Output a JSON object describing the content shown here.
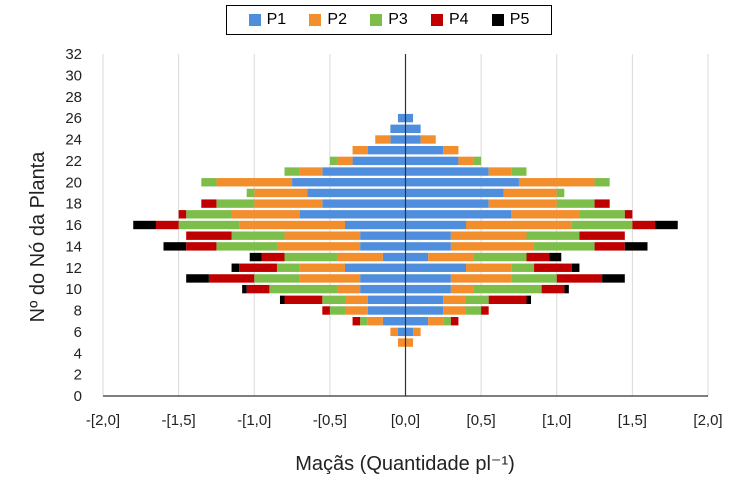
{
  "chart_data": {
    "type": "bar",
    "orientation": "horizontal",
    "stacked": "diverging",
    "xlabel": "Maçãs (Quantidade pl⁻¹)",
    "ylabel": "Nº do Nó da Planta",
    "xlim": [
      -2.0,
      2.0
    ],
    "ylim": [
      0,
      32
    ],
    "xtick_values": [
      -2.0,
      -1.5,
      -1.0,
      -0.5,
      0.0,
      0.5,
      1.0,
      1.5,
      2.0
    ],
    "xtick_labels": [
      "-[2,0]",
      "-[1,5]",
      "-[1,0]",
      "-[0,5]",
      "[0,0]",
      "[0,5]",
      "[1,0]",
      "[1,5]",
      "[2,0]"
    ],
    "ytick_values": [
      0,
      2,
      4,
      6,
      8,
      10,
      12,
      14,
      16,
      18,
      20,
      22,
      24,
      26,
      28,
      30,
      32
    ],
    "ytick_labels": [
      "0",
      "2",
      "4",
      "6",
      "8",
      "10",
      "12",
      "14",
      "16",
      "18",
      "20",
      "22",
      "24",
      "26",
      "28",
      "30",
      "32"
    ],
    "grid": "vertical",
    "legend_position": "top",
    "series": [
      {
        "name": "P1",
        "color": "#4F8EDD"
      },
      {
        "name": "P2",
        "color": "#F28E2B"
      },
      {
        "name": "P3",
        "color": "#7DBE4A"
      },
      {
        "name": "P4",
        "color": "#C00000"
      },
      {
        "name": "P5",
        "color": "#000000"
      }
    ],
    "nodes": [
      {
        "y": 5,
        "values": [
          0,
          0.05,
          0,
          0,
          0
        ]
      },
      {
        "y": 6,
        "values": [
          0.05,
          0.05,
          0,
          0,
          0
        ]
      },
      {
        "y": 7,
        "values": [
          0.15,
          0.1,
          0.05,
          0.05,
          0
        ]
      },
      {
        "y": 8,
        "values": [
          0.25,
          0.15,
          0.1,
          0.05,
          0
        ]
      },
      {
        "y": 9,
        "values": [
          0.25,
          0.15,
          0.15,
          0.25,
          0.03
        ]
      },
      {
        "y": 10,
        "values": [
          0.3,
          0.15,
          0.45,
          0.15,
          0.03
        ]
      },
      {
        "y": 11,
        "values": [
          0.3,
          0.4,
          0.3,
          0.3,
          0.15
        ]
      },
      {
        "y": 12,
        "values": [
          0.4,
          0.3,
          0.15,
          0.25,
          0.05
        ]
      },
      {
        "y": 13,
        "values": [
          0.15,
          0.3,
          0.35,
          0.15,
          0.08
        ]
      },
      {
        "y": 14,
        "values": [
          0.3,
          0.55,
          0.4,
          0.2,
          0.15
        ]
      },
      {
        "y": 15,
        "values": [
          0.3,
          0.5,
          0.35,
          0.3,
          0
        ]
      },
      {
        "y": 16,
        "values": [
          0.4,
          0.7,
          0.4,
          0.15,
          0.15
        ]
      },
      {
        "y": 17,
        "values": [
          0.7,
          0.45,
          0.3,
          0.05,
          0
        ]
      },
      {
        "y": 18,
        "values": [
          0.55,
          0.45,
          0.25,
          0.1,
          0
        ]
      },
      {
        "y": 19,
        "values": [
          0.65,
          0.35,
          0.05,
          0,
          0
        ]
      },
      {
        "y": 20,
        "values": [
          0.75,
          0.5,
          0.1,
          0,
          0
        ]
      },
      {
        "y": 21,
        "values": [
          0.55,
          0.15,
          0.1,
          0,
          0
        ]
      },
      {
        "y": 22,
        "values": [
          0.35,
          0.1,
          0.05,
          0,
          0
        ]
      },
      {
        "y": 23,
        "values": [
          0.25,
          0.1,
          0,
          0,
          0
        ]
      },
      {
        "y": 24,
        "values": [
          0.1,
          0.1,
          0,
          0,
          0
        ]
      },
      {
        "y": 25,
        "values": [
          0.1,
          0,
          0,
          0,
          0
        ]
      },
      {
        "y": 26,
        "values": [
          0.05,
          0,
          0,
          0,
          0
        ]
      }
    ]
  }
}
